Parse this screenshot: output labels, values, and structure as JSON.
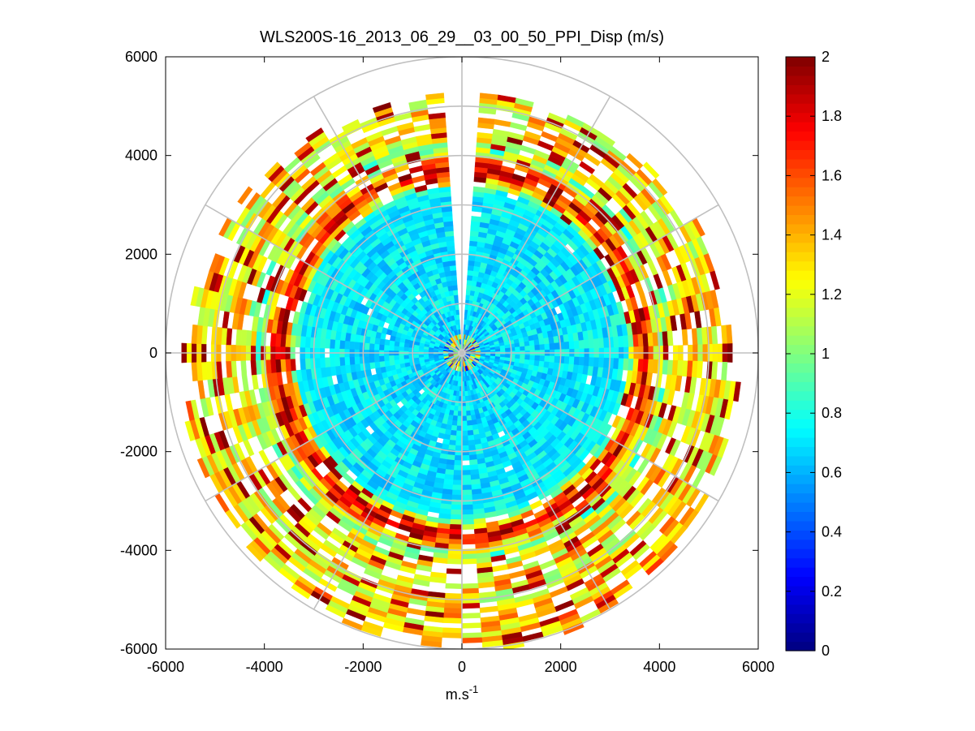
{
  "chart_data": {
    "type": "heatmap",
    "subtype": "polar-ppi",
    "title": "WLS200S-16_2013_06_29__03_00_50_PPI_Disp (m/s)",
    "xlabel_base": "m.s",
    "xlabel_exp": "-1",
    "ylabel": "",
    "xlim": [
      -6000,
      6000
    ],
    "ylim": [
      -6000,
      6000
    ],
    "xticks": [
      -6000,
      -4000,
      -2000,
      0,
      2000,
      4000,
      6000
    ],
    "yticks": [
      6000,
      4000,
      2000,
      0,
      -2000,
      -4000,
      -6000
    ],
    "xtick_labels": [
      "-6000",
      "-4000",
      "-2000",
      "0",
      "2000",
      "4000",
      "6000"
    ],
    "ytick_labels": [
      "6000",
      "4000",
      "2000",
      "0",
      "-2000",
      "-4000",
      "-6000"
    ],
    "polar_grid": {
      "ring_radii": [
        1000,
        2000,
        3000,
        4000,
        5000,
        6000
      ],
      "spoke_angles_deg": [
        0,
        30,
        60,
        90,
        120,
        150,
        180,
        210,
        240,
        270,
        300,
        330
      ]
    },
    "data_extent": {
      "inner_range_m": 80,
      "max_range_m": 5900,
      "range_gate_m": 100,
      "azimuth_step_deg": 4,
      "missing_sector_deg": [
        -4,
        4
      ]
    },
    "colorbar": {
      "colormap": "jet",
      "range": [
        0,
        2
      ],
      "ticks": [
        0,
        0.2,
        0.4,
        0.6,
        0.8,
        1,
        1.2,
        1.4,
        1.6,
        1.8,
        2
      ],
      "tick_labels": [
        "0",
        "0.2",
        "0.4",
        "0.6",
        "0.8",
        "1",
        "1.2",
        "1.4",
        "1.6",
        "1.8",
        "2"
      ]
    },
    "radial_profile": {
      "range_m": [
        0,
        500,
        1000,
        2000,
        3000,
        3300,
        3700,
        4100,
        4600,
        5000,
        5900
      ],
      "typical_dispersion_ms": [
        0.6,
        0.65,
        0.7,
        0.7,
        0.72,
        0.75,
        1.9,
        1.0,
        1.35,
        1.25,
        1.4
      ]
    }
  }
}
